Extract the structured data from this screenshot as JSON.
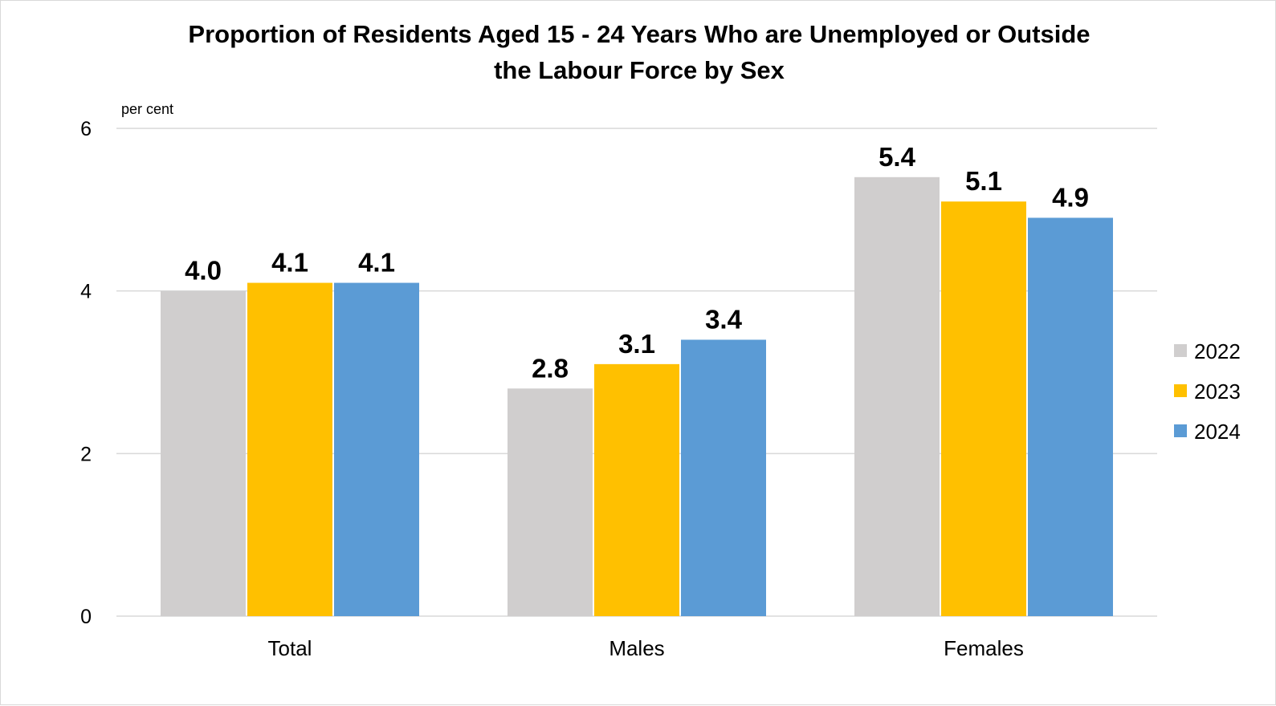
{
  "chart_data": {
    "type": "bar",
    "title_lines": [
      "Proportion of Residents  Aged 15 - 24 Years Who are Unemployed  or Outside",
      "the Labour Force by Sex"
    ],
    "ylabel": "per cent",
    "xlabel": "",
    "ylim": [
      0,
      6
    ],
    "yticks": [
      0,
      2,
      4,
      6
    ],
    "grid": true,
    "legend_position": "right",
    "categories": [
      "Total",
      "Males",
      "Females"
    ],
    "series": [
      {
        "name": "2022",
        "color": "#d0cece",
        "values": [
          4.0,
          2.8,
          5.4
        ]
      },
      {
        "name": "2023",
        "color": "#ffc000",
        "values": [
          4.1,
          3.1,
          5.1
        ]
      },
      {
        "name": "2024",
        "color": "#5b9bd5",
        "values": [
          4.1,
          3.4,
          4.9
        ]
      }
    ]
  }
}
